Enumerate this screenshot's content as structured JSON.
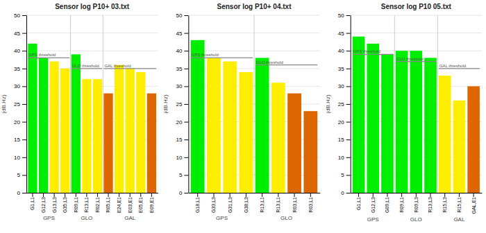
{
  "chart_data": [
    {
      "type": "bar",
      "title": "Sensor log P10+ 03.txt",
      "y_label": "(dB.Hz)",
      "categories": [
        "G1,L1",
        "G12,L3",
        "G13,L3",
        "G35,L3",
        "R09,L1",
        "R13,L1",
        "R02,L1",
        "R05,L1",
        "E24,E1",
        "E03,E1",
        "E05,E1",
        "E09,E1"
      ],
      "values": [
        42,
        38,
        37,
        35,
        39,
        32,
        32,
        28,
        36,
        35,
        34,
        28
      ],
      "colors": [
        "#00ee00",
        "#00ee00",
        "#ffee00",
        "#ffee00",
        "#00ee00",
        "#ffee00",
        "#ffee00",
        "#dd6600",
        "#ffee00",
        "#ffee00",
        "#ffee00",
        "#dd6600"
      ],
      "groups": [
        "GPS",
        "GPS",
        "GPS",
        "GPS",
        "GLO",
        "GLO",
        "GLO",
        "GAL",
        "GAL",
        "GAL",
        "GAL",
        "GAL"
      ],
      "thresholds": [
        {
          "group": "GPS",
          "value": 38,
          "label": "GPS threshold"
        },
        {
          "group": "GLO",
          "value": 35,
          "label": "GLO threshold"
        },
        {
          "group": "GAL",
          "value": 35,
          "label": "GAL threshold"
        }
      ],
      "ylim": [
        0,
        50
      ],
      "yticks": [
        0,
        5,
        10,
        15,
        20,
        25,
        30,
        35,
        40,
        45,
        50
      ],
      "grid": true
    },
    {
      "type": "bar",
      "title": "Sensor log P10+ 04.txt",
      "y_label": "(dB.Hz)",
      "categories": [
        "G18,L1",
        "G33,L3",
        "G31,L3",
        "G38,L3",
        "R13,L1",
        "R13,L1",
        "R03,L1",
        "R03,L1"
      ],
      "values": [
        43,
        38,
        37,
        34,
        38,
        31,
        28,
        23
      ],
      "colors": [
        "#00ee00",
        "#ffee00",
        "#ffee00",
        "#ffee00",
        "#00ee00",
        "#ffee00",
        "#dd6600",
        "#dd6600"
      ],
      "groups": [
        "GPS",
        "GPS",
        "GPS",
        "GPS",
        "GLO",
        "GLO",
        "GLO",
        "GLO"
      ],
      "thresholds": [
        {
          "group": "GPS",
          "value": 38,
          "label": "GPS threshold"
        },
        {
          "group": "GLO",
          "value": 36,
          "label": "GLO threshold"
        }
      ],
      "ylim": [
        0,
        50
      ],
      "yticks": [
        0,
        5,
        10,
        15,
        20,
        25,
        30,
        35,
        40,
        45,
        50
      ],
      "grid": true
    },
    {
      "type": "bar",
      "title": "Sensor log P10 05.txt",
      "y_label": "(dB.Hz)",
      "categories": [
        "G1,L1",
        "G12,L3",
        "G09,L1",
        "R09,L1",
        "R09,L3",
        "R13,L3",
        "R15,L3",
        "R15,L1",
        "GAL,E1"
      ],
      "values": [
        44,
        42,
        39,
        40,
        40,
        38,
        33,
        26,
        30
      ],
      "colors": [
        "#00ee00",
        "#00ee00",
        "#00ee00",
        "#00ee00",
        "#00ee00",
        "#00ee00",
        "#ffee00",
        "#ffee00",
        "#dd6600"
      ],
      "groups": [
        "GPS",
        "GPS",
        "GPS",
        "GLO",
        "GLO",
        "GLO",
        "GAL",
        "GAL",
        "GAL"
      ],
      "thresholds": [
        {
          "group": "GPS",
          "value": 39,
          "label": "GPS threshold"
        },
        {
          "group": "GLO",
          "value": 37,
          "label": "GLO threshold"
        },
        {
          "group": "GAL",
          "value": 35,
          "label": "GAL threshold"
        }
      ],
      "ylim": [
        0,
        50
      ],
      "yticks": [
        0,
        5,
        10,
        15,
        20,
        25,
        30,
        35,
        40,
        45,
        50
      ],
      "grid": true
    }
  ]
}
